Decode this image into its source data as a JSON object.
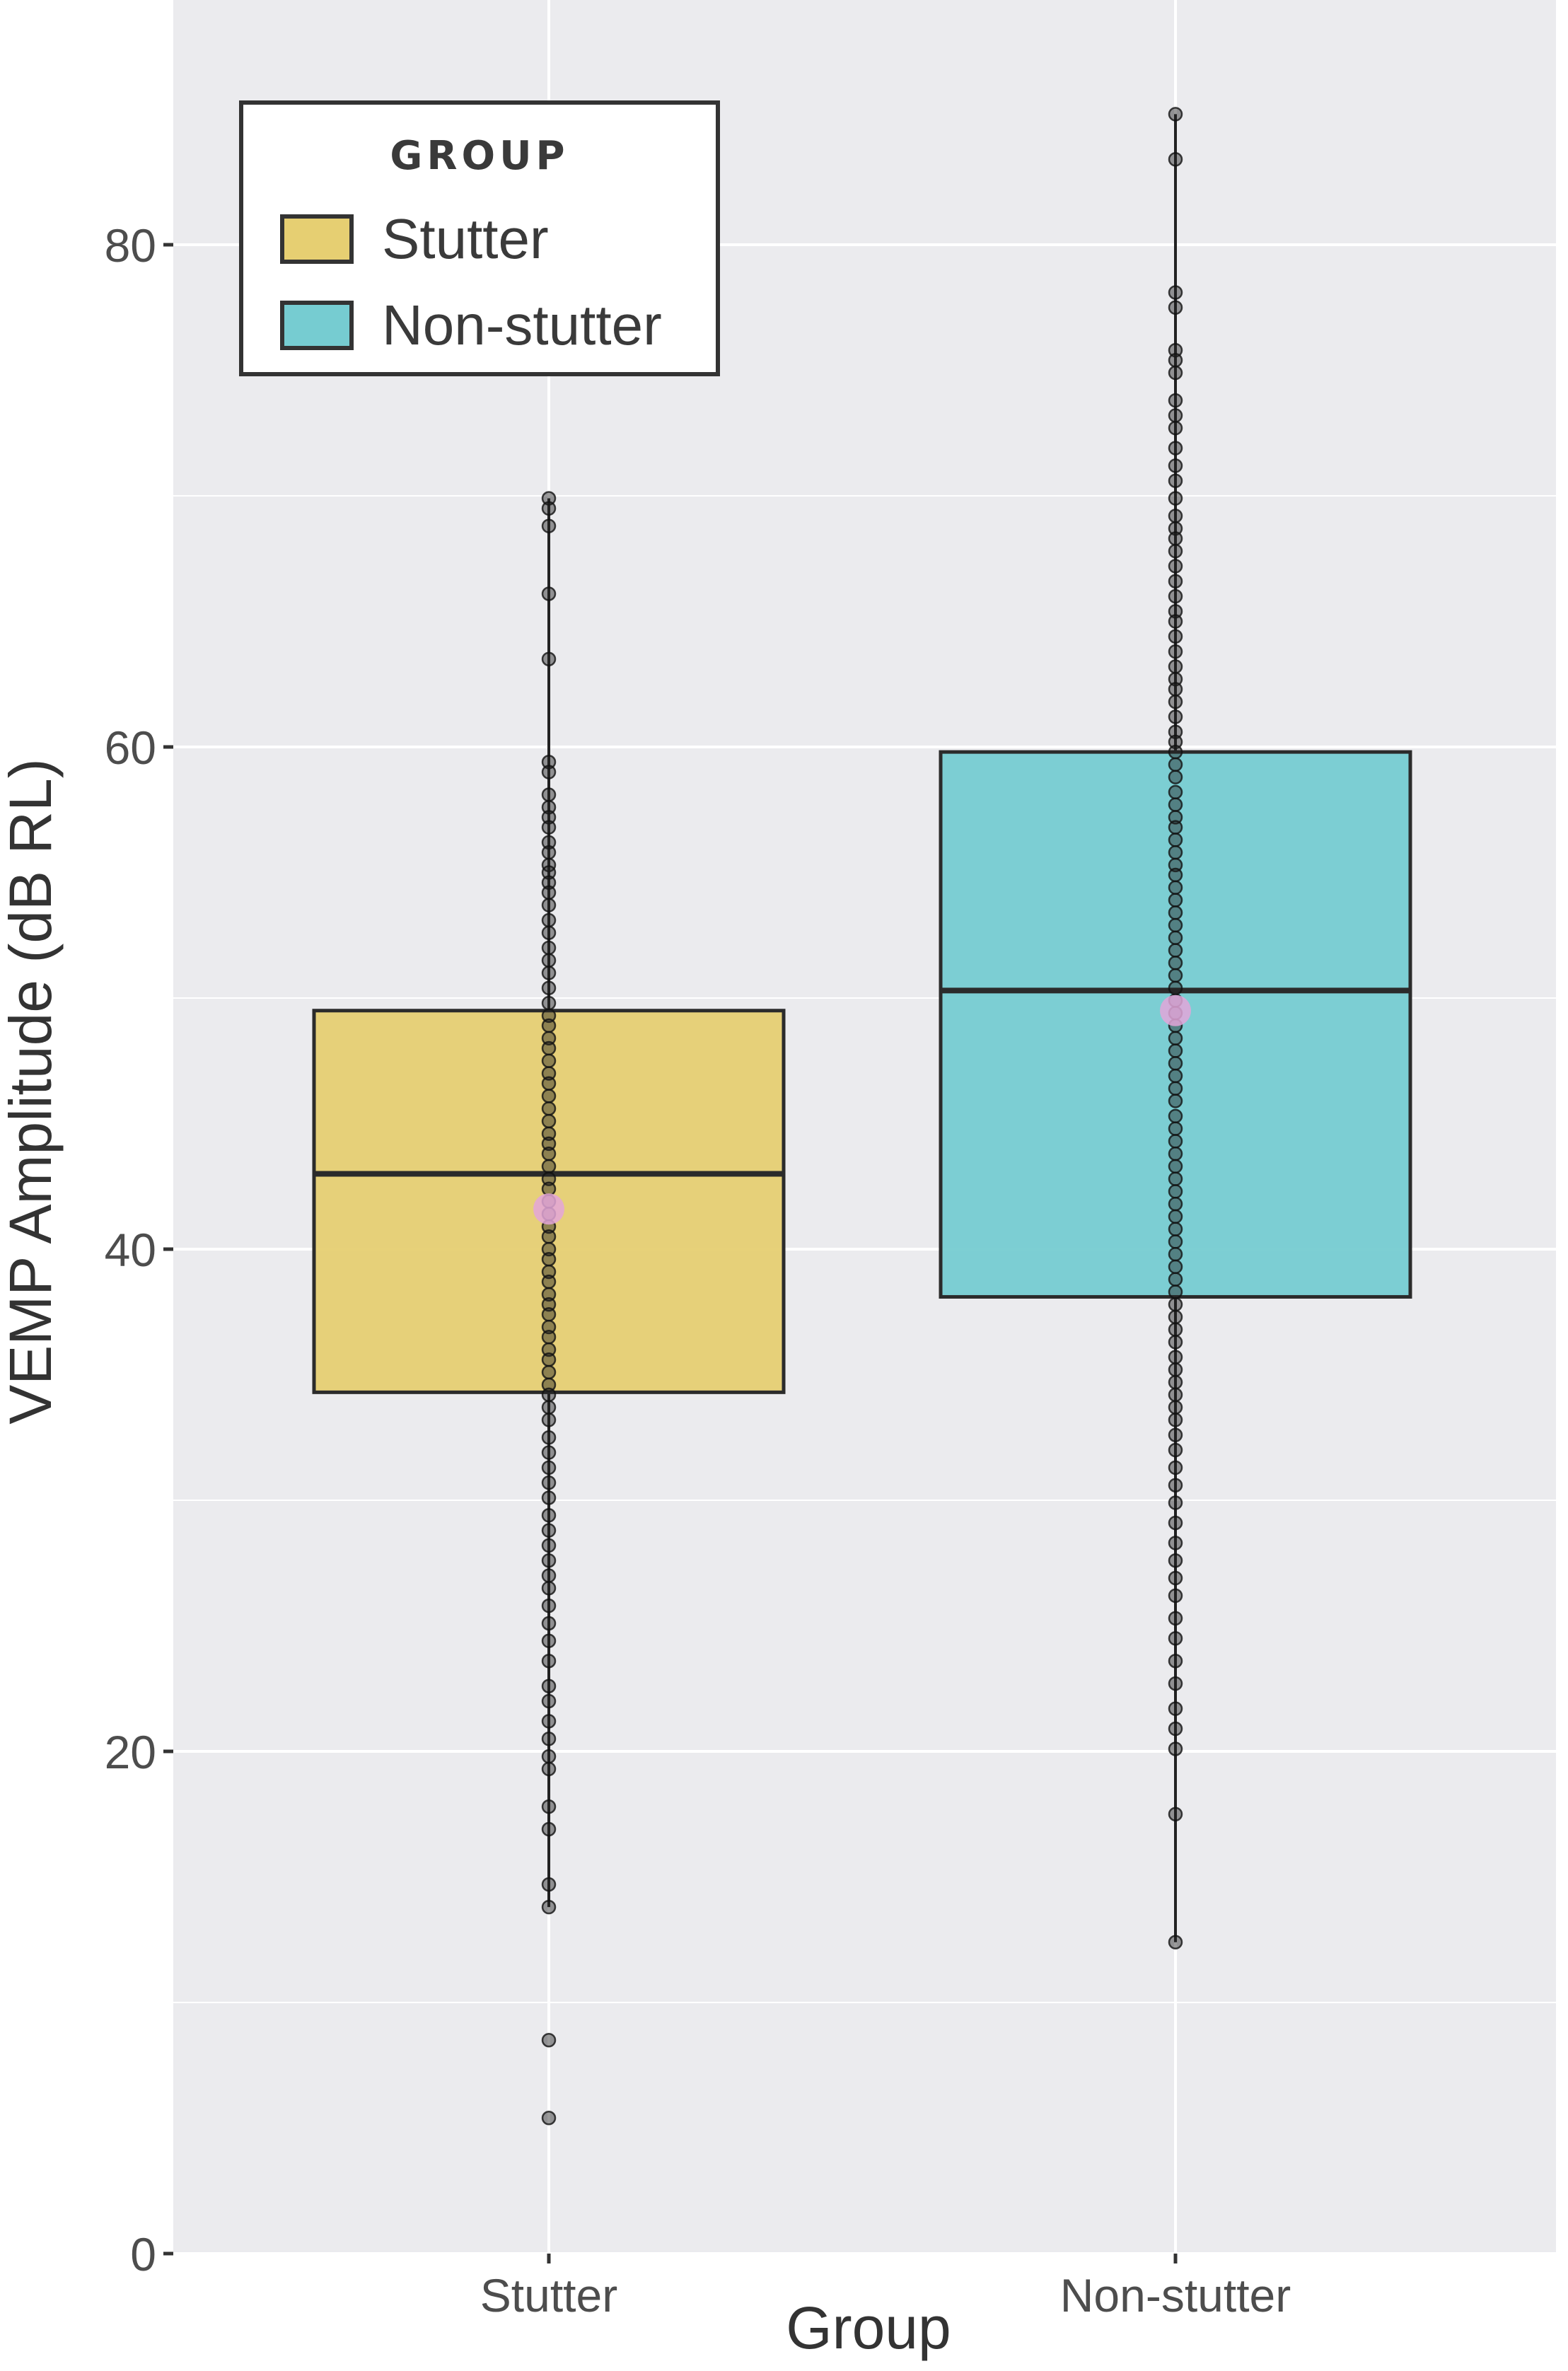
{
  "chart_data": {
    "type": "box",
    "xlabel": "Group",
    "ylabel": "VEMP Amplitude (dB RL)",
    "ylim": [
      0,
      88
    ],
    "y_ticks": [
      0,
      20,
      40,
      60,
      80
    ],
    "categories": [
      "Stutter",
      "Non-stutter"
    ],
    "legend": {
      "title": "GROUP",
      "placement": "top-left",
      "entries": [
        {
          "label": "Stutter",
          "color": "#E6CF72"
        },
        {
          "label": "Non-stutter",
          "color": "#76CCD1"
        }
      ]
    },
    "grid": true,
    "series": [
      {
        "name": "Stutter",
        "color": "#E6CF72",
        "box": {
          "q1": 34.3,
          "median": 43.0,
          "q3": 49.5,
          "whisker_low": 13.8,
          "whisker_high": 69.9,
          "mean": 41.6
        },
        "points": [
          69.9,
          69.5,
          68.8,
          66.1,
          63.5,
          59.4,
          59.0,
          58.1,
          57.6,
          57.2,
          56.8,
          56.2,
          55.8,
          55.3,
          55.0,
          54.6,
          54.2,
          53.7,
          53.1,
          52.6,
          52.0,
          51.5,
          51.0,
          50.4,
          49.8,
          49.3,
          48.9,
          48.4,
          48.0,
          47.5,
          47.0,
          46.6,
          46.1,
          45.6,
          45.1,
          44.6,
          44.2,
          43.8,
          43.3,
          42.8,
          42.4,
          41.9,
          41.4,
          40.9,
          40.5,
          40.0,
          39.6,
          39.1,
          38.7,
          38.2,
          37.8,
          37.4,
          36.9,
          36.5,
          36.0,
          35.6,
          35.1,
          34.6,
          34.2,
          33.7,
          33.2,
          32.5,
          31.9,
          31.3,
          30.7,
          30.1,
          29.4,
          28.8,
          28.2,
          27.6,
          27.0,
          26.5,
          25.8,
          25.1,
          24.4,
          23.6,
          22.6,
          22.0,
          21.2,
          20.5,
          19.8,
          19.3,
          17.8,
          16.9,
          14.7,
          13.8,
          8.5,
          5.4
        ]
      },
      {
        "name": "Non-stutter",
        "color": "#76CCD1",
        "box": {
          "q1": 38.1,
          "median": 50.3,
          "q3": 59.8,
          "whisker_low": 12.4,
          "whisker_high": 85.2,
          "mean": 49.5
        },
        "points": [
          85.2,
          83.4,
          78.1,
          77.5,
          75.8,
          75.4,
          74.9,
          73.8,
          73.2,
          72.7,
          71.9,
          71.2,
          70.6,
          69.9,
          69.2,
          68.7,
          68.3,
          67.8,
          67.2,
          66.6,
          66.0,
          65.4,
          65.0,
          64.4,
          63.8,
          63.2,
          62.7,
          62.3,
          61.8,
          61.2,
          60.6,
          60.2,
          59.8,
          59.3,
          58.8,
          58.2,
          57.7,
          57.2,
          56.8,
          56.3,
          55.8,
          55.3,
          54.9,
          54.4,
          53.9,
          53.4,
          52.9,
          52.4,
          51.9,
          51.4,
          50.9,
          50.4,
          49.9,
          49.4,
          48.9,
          48.4,
          47.9,
          47.4,
          46.9,
          46.4,
          45.9,
          45.3,
          44.8,
          44.3,
          43.8,
          43.3,
          42.8,
          42.3,
          41.8,
          41.3,
          40.8,
          40.3,
          39.8,
          39.3,
          38.8,
          38.3,
          37.8,
          37.3,
          36.8,
          36.3,
          35.7,
          35.2,
          34.7,
          34.2,
          33.7,
          33.2,
          32.6,
          32.0,
          31.3,
          30.6,
          29.9,
          29.1,
          28.3,
          27.6,
          26.9,
          26.2,
          25.3,
          24.5,
          23.6,
          22.7,
          21.7,
          20.9,
          20.1,
          17.5,
          12.4
        ]
      }
    ]
  }
}
